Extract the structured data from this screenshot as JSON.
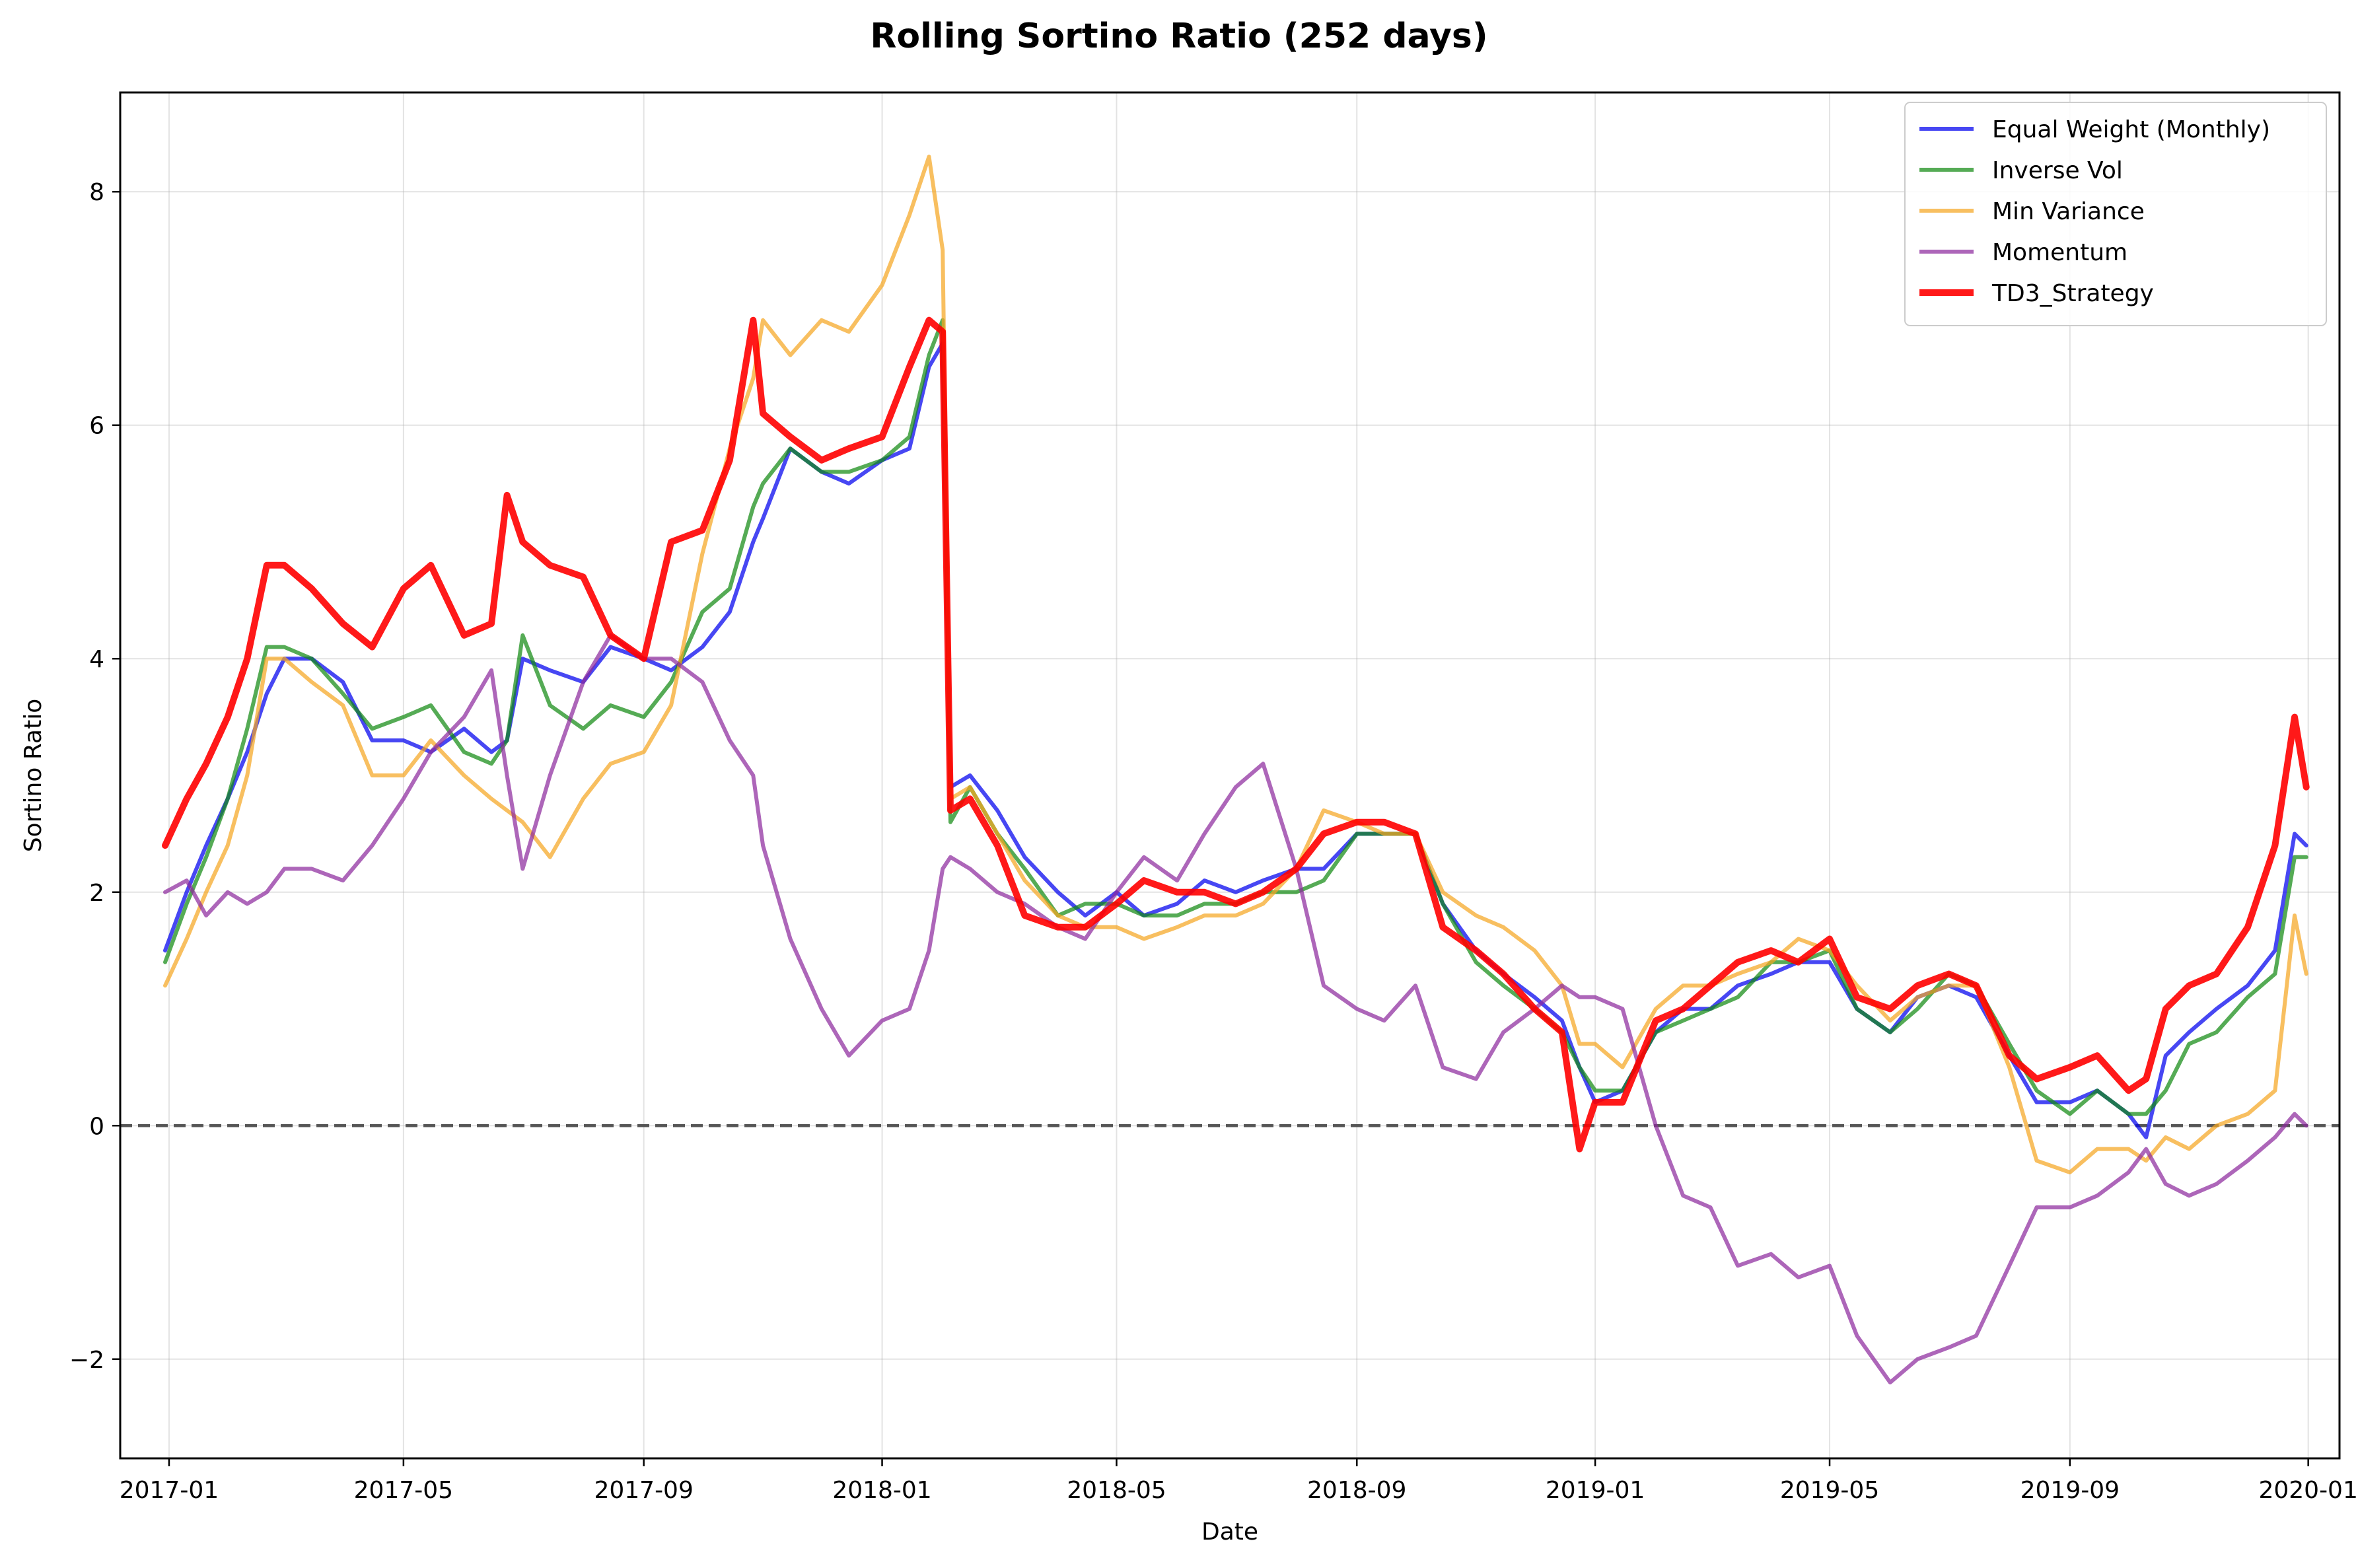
{
  "chart_data": {
    "type": "line",
    "title": "Rolling Sortino Ratio (252 days)",
    "xlabel": "Date",
    "ylabel": "Sortino Ratio",
    "x_ticks": [
      "2017-01",
      "2017-05",
      "2017-09",
      "2018-01",
      "2018-05",
      "2018-09",
      "2019-01",
      "2019-05",
      "2019-09",
      "2020-01"
    ],
    "y_ticks": [
      -2,
      0,
      2,
      4,
      6,
      8
    ],
    "xlim": [
      "2016-12-07",
      "2020-01-17"
    ],
    "ylim": [
      -2.85,
      8.85
    ],
    "grid": true,
    "legend_position": "top-right",
    "reference_line": {
      "y": 0,
      "style": "dashed",
      "color": "#555555"
    },
    "series": [
      {
        "name": "Equal Weight (Monthly)",
        "color": "#0000ee",
        "x": [
          "2016-12-30",
          "2017-01-10",
          "2017-01-20",
          "2017-01-31",
          "2017-02-10",
          "2017-02-20",
          "2017-03-01",
          "2017-03-15",
          "2017-03-31",
          "2017-04-15",
          "2017-05-01",
          "2017-05-15",
          "2017-06-01",
          "2017-06-15",
          "2017-06-23",
          "2017-07-01",
          "2017-07-15",
          "2017-08-01",
          "2017-08-15",
          "2017-09-01",
          "2017-09-15",
          "2017-10-01",
          "2017-10-15",
          "2017-10-27",
          "2017-11-01",
          "2017-11-15",
          "2017-12-01",
          "2017-12-15",
          "2018-01-01",
          "2018-01-15",
          "2018-01-25",
          "2018-02-01",
          "2018-02-05",
          "2018-02-15",
          "2018-03-01",
          "2018-03-15",
          "2018-04-01",
          "2018-04-15",
          "2018-05-01",
          "2018-05-15",
          "2018-06-01",
          "2018-06-15",
          "2018-07-01",
          "2018-07-15",
          "2018-08-01",
          "2018-08-15",
          "2018-09-01",
          "2018-09-15",
          "2018-10-01",
          "2018-10-15",
          "2018-11-01",
          "2018-11-15",
          "2018-12-01",
          "2018-12-15",
          "2018-12-24",
          "2019-01-01",
          "2019-01-15",
          "2019-02-01",
          "2019-02-15",
          "2019-03-01",
          "2019-03-15",
          "2019-04-01",
          "2019-04-15",
          "2019-05-01",
          "2019-05-15",
          "2019-06-01",
          "2019-06-15",
          "2019-07-01",
          "2019-07-15",
          "2019-08-01",
          "2019-08-15",
          "2019-09-01",
          "2019-09-15",
          "2019-10-01",
          "2019-10-10",
          "2019-10-20",
          "2019-11-01",
          "2019-11-15",
          "2019-12-01",
          "2019-12-15",
          "2019-12-25",
          "2019-12-31"
        ],
        "y": [
          1.5,
          2.0,
          2.4,
          2.8,
          3.2,
          3.7,
          4.0,
          4.0,
          3.8,
          3.3,
          3.3,
          3.2,
          3.4,
          3.2,
          3.3,
          4.0,
          3.9,
          3.8,
          4.1,
          4.0,
          3.9,
          4.1,
          4.4,
          5.0,
          5.2,
          5.8,
          5.6,
          5.5,
          5.7,
          5.8,
          6.5,
          6.7,
          2.9,
          3.0,
          2.7,
          2.3,
          2.0,
          1.8,
          2.0,
          1.8,
          1.9,
          2.1,
          2.0,
          2.1,
          2.2,
          2.2,
          2.5,
          2.5,
          2.5,
          1.9,
          1.5,
          1.3,
          1.1,
          0.9,
          0.5,
          0.2,
          0.3,
          0.8,
          1.0,
          1.0,
          1.2,
          1.3,
          1.4,
          1.4,
          1.0,
          0.8,
          1.1,
          1.2,
          1.1,
          0.6,
          0.2,
          0.2,
          0.3,
          0.1,
          -0.1,
          0.6,
          0.8,
          1.0,
          1.2,
          1.5,
          2.5,
          2.4
        ]
      },
      {
        "name": "Inverse Vol",
        "color": "#138a13",
        "x": [
          "2016-12-30",
          "2017-01-10",
          "2017-01-20",
          "2017-01-31",
          "2017-02-10",
          "2017-02-20",
          "2017-03-01",
          "2017-03-15",
          "2017-03-31",
          "2017-04-15",
          "2017-05-01",
          "2017-05-15",
          "2017-06-01",
          "2017-06-15",
          "2017-06-23",
          "2017-07-01",
          "2017-07-15",
          "2017-08-01",
          "2017-08-15",
          "2017-09-01",
          "2017-09-15",
          "2017-10-01",
          "2017-10-15",
          "2017-10-27",
          "2017-11-01",
          "2017-11-15",
          "2017-12-01",
          "2017-12-15",
          "2018-01-01",
          "2018-01-15",
          "2018-01-25",
          "2018-02-01",
          "2018-02-05",
          "2018-02-15",
          "2018-03-01",
          "2018-03-15",
          "2018-04-01",
          "2018-04-15",
          "2018-05-01",
          "2018-05-15",
          "2018-06-01",
          "2018-06-15",
          "2018-07-01",
          "2018-07-15",
          "2018-08-01",
          "2018-08-15",
          "2018-09-01",
          "2018-09-15",
          "2018-10-01",
          "2018-10-15",
          "2018-11-01",
          "2018-11-15",
          "2018-12-01",
          "2018-12-15",
          "2018-12-24",
          "2019-01-01",
          "2019-01-15",
          "2019-02-01",
          "2019-02-15",
          "2019-03-01",
          "2019-03-15",
          "2019-04-01",
          "2019-04-15",
          "2019-05-01",
          "2019-05-15",
          "2019-06-01",
          "2019-06-15",
          "2019-07-01",
          "2019-07-15",
          "2019-08-01",
          "2019-08-15",
          "2019-09-01",
          "2019-09-15",
          "2019-10-01",
          "2019-10-10",
          "2019-10-20",
          "2019-11-01",
          "2019-11-15",
          "2019-12-01",
          "2019-12-15",
          "2019-12-25",
          "2019-12-31"
        ],
        "y": [
          1.4,
          1.9,
          2.3,
          2.8,
          3.4,
          4.1,
          4.1,
          4.0,
          3.7,
          3.4,
          3.5,
          3.6,
          3.2,
          3.1,
          3.3,
          4.2,
          3.6,
          3.4,
          3.6,
          3.5,
          3.8,
          4.4,
          4.6,
          5.3,
          5.5,
          5.8,
          5.6,
          5.6,
          5.7,
          5.9,
          6.6,
          6.9,
          2.6,
          2.9,
          2.5,
          2.2,
          1.8,
          1.9,
          1.9,
          1.8,
          1.8,
          1.9,
          1.9,
          2.0,
          2.0,
          2.1,
          2.5,
          2.5,
          2.5,
          1.9,
          1.4,
          1.2,
          1.0,
          0.8,
          0.5,
          0.3,
          0.3,
          0.8,
          0.9,
          1.0,
          1.1,
          1.4,
          1.4,
          1.5,
          1.0,
          0.8,
          1.0,
          1.3,
          1.2,
          0.7,
          0.3,
          0.1,
          0.3,
          0.1,
          0.1,
          0.3,
          0.7,
          0.8,
          1.1,
          1.3,
          2.3,
          2.3
        ]
      },
      {
        "name": "Min Variance",
        "color": "#f5a623",
        "x": [
          "2016-12-30",
          "2017-01-10",
          "2017-01-20",
          "2017-01-31",
          "2017-02-10",
          "2017-02-20",
          "2017-03-01",
          "2017-03-15",
          "2017-03-31",
          "2017-04-15",
          "2017-05-01",
          "2017-05-15",
          "2017-06-01",
          "2017-06-15",
          "2017-06-23",
          "2017-07-01",
          "2017-07-15",
          "2017-08-01",
          "2017-08-15",
          "2017-09-01",
          "2017-09-15",
          "2017-10-01",
          "2017-10-15",
          "2017-10-27",
          "2017-11-01",
          "2017-11-15",
          "2017-12-01",
          "2017-12-15",
          "2018-01-01",
          "2018-01-15",
          "2018-01-25",
          "2018-02-01",
          "2018-02-05",
          "2018-02-15",
          "2018-03-01",
          "2018-03-15",
          "2018-04-01",
          "2018-04-15",
          "2018-05-01",
          "2018-05-15",
          "2018-06-01",
          "2018-06-15",
          "2018-07-01",
          "2018-07-15",
          "2018-08-01",
          "2018-08-15",
          "2018-09-01",
          "2018-09-15",
          "2018-10-01",
          "2018-10-15",
          "2018-11-01",
          "2018-11-15",
          "2018-12-01",
          "2018-12-15",
          "2018-12-24",
          "2019-01-01",
          "2019-01-15",
          "2019-02-01",
          "2019-02-15",
          "2019-03-01",
          "2019-03-15",
          "2019-04-01",
          "2019-04-15",
          "2019-05-01",
          "2019-05-15",
          "2019-06-01",
          "2019-06-15",
          "2019-07-01",
          "2019-07-15",
          "2019-08-01",
          "2019-08-15",
          "2019-09-01",
          "2019-09-15",
          "2019-10-01",
          "2019-10-10",
          "2019-10-20",
          "2019-11-01",
          "2019-11-15",
          "2019-12-01",
          "2019-12-15",
          "2019-12-25",
          "2019-12-31"
        ],
        "y": [
          1.2,
          1.6,
          2.0,
          2.4,
          3.0,
          4.0,
          4.0,
          3.8,
          3.6,
          3.0,
          3.0,
          3.3,
          3.0,
          2.8,
          2.7,
          2.6,
          2.3,
          2.8,
          3.1,
          3.2,
          3.6,
          4.9,
          5.8,
          6.4,
          6.9,
          6.6,
          6.9,
          6.8,
          7.2,
          7.8,
          8.3,
          7.5,
          2.8,
          2.9,
          2.5,
          2.1,
          1.8,
          1.7,
          1.7,
          1.6,
          1.7,
          1.8,
          1.8,
          1.9,
          2.2,
          2.7,
          2.6,
          2.5,
          2.5,
          2.0,
          1.8,
          1.7,
          1.5,
          1.2,
          0.7,
          0.7,
          0.5,
          1.0,
          1.2,
          1.2,
          1.3,
          1.4,
          1.6,
          1.5,
          1.2,
          0.9,
          1.1,
          1.2,
          1.2,
          0.5,
          -0.3,
          -0.4,
          -0.2,
          -0.2,
          -0.3,
          -0.1,
          -0.2,
          0.0,
          0.1,
          0.3,
          1.8,
          1.3
        ]
      },
      {
        "name": "Momentum",
        "color": "#8e2b9e",
        "x": [
          "2016-12-30",
          "2017-01-10",
          "2017-01-20",
          "2017-01-31",
          "2017-02-10",
          "2017-02-20",
          "2017-03-01",
          "2017-03-15",
          "2017-03-31",
          "2017-04-15",
          "2017-05-01",
          "2017-05-15",
          "2017-06-01",
          "2017-06-15",
          "2017-06-23",
          "2017-07-01",
          "2017-07-15",
          "2017-08-01",
          "2017-08-15",
          "2017-09-01",
          "2017-09-15",
          "2017-10-01",
          "2017-10-15",
          "2017-10-27",
          "2017-11-01",
          "2017-11-15",
          "2017-12-01",
          "2017-12-15",
          "2018-01-01",
          "2018-01-15",
          "2018-01-25",
          "2018-02-01",
          "2018-02-05",
          "2018-02-15",
          "2018-03-01",
          "2018-03-15",
          "2018-04-01",
          "2018-04-15",
          "2018-05-01",
          "2018-05-15",
          "2018-06-01",
          "2018-06-15",
          "2018-07-01",
          "2018-07-15",
          "2018-08-01",
          "2018-08-15",
          "2018-09-01",
          "2018-09-15",
          "2018-10-01",
          "2018-10-15",
          "2018-11-01",
          "2018-11-15",
          "2018-12-01",
          "2018-12-15",
          "2018-12-24",
          "2019-01-01",
          "2019-01-15",
          "2019-02-01",
          "2019-02-15",
          "2019-03-01",
          "2019-03-15",
          "2019-04-01",
          "2019-04-15",
          "2019-05-01",
          "2019-05-15",
          "2019-06-01",
          "2019-06-15",
          "2019-07-01",
          "2019-07-15",
          "2019-08-01",
          "2019-08-15",
          "2019-09-01",
          "2019-09-15",
          "2019-10-01",
          "2019-10-10",
          "2019-10-20",
          "2019-11-01",
          "2019-11-15",
          "2019-12-01",
          "2019-12-15",
          "2019-12-25",
          "2019-12-31"
        ],
        "y": [
          2.0,
          2.1,
          1.8,
          2.0,
          1.9,
          2.0,
          2.2,
          2.2,
          2.1,
          2.4,
          2.8,
          3.2,
          3.5,
          3.9,
          3.0,
          2.2,
          3.0,
          3.8,
          4.2,
          4.0,
          4.0,
          3.8,
          3.3,
          3.0,
          2.4,
          1.6,
          1.0,
          0.6,
          0.9,
          1.0,
          1.5,
          2.2,
          2.3,
          2.2,
          2.0,
          1.9,
          1.7,
          1.6,
          2.0,
          2.3,
          2.1,
          2.5,
          2.9,
          3.1,
          2.2,
          1.2,
          1.0,
          0.9,
          1.2,
          0.5,
          0.4,
          0.8,
          1.0,
          1.2,
          1.1,
          1.1,
          1.0,
          0.0,
          -0.6,
          -0.7,
          -1.2,
          -1.1,
          -1.3,
          -1.2,
          -1.8,
          -2.2,
          -2.0,
          -1.9,
          -1.8,
          -1.2,
          -0.7,
          -0.7,
          -0.6,
          -0.4,
          -0.2,
          -0.5,
          -0.6,
          -0.5,
          -0.3,
          -0.1,
          0.1,
          0.0
        ]
      },
      {
        "name": "TD3_Strategy",
        "color": "#ff0000",
        "x": [
          "2016-12-30",
          "2017-01-10",
          "2017-01-20",
          "2017-01-31",
          "2017-02-10",
          "2017-02-20",
          "2017-03-01",
          "2017-03-15",
          "2017-03-31",
          "2017-04-15",
          "2017-05-01",
          "2017-05-15",
          "2017-06-01",
          "2017-06-15",
          "2017-06-23",
          "2017-07-01",
          "2017-07-15",
          "2017-08-01",
          "2017-08-15",
          "2017-09-01",
          "2017-09-15",
          "2017-10-01",
          "2017-10-15",
          "2017-10-27",
          "2017-11-01",
          "2017-11-15",
          "2017-12-01",
          "2017-12-15",
          "2018-01-01",
          "2018-01-15",
          "2018-01-25",
          "2018-02-01",
          "2018-02-05",
          "2018-02-15",
          "2018-03-01",
          "2018-03-15",
          "2018-04-01",
          "2018-04-15",
          "2018-05-01",
          "2018-05-15",
          "2018-06-01",
          "2018-06-15",
          "2018-07-01",
          "2018-07-15",
          "2018-08-01",
          "2018-08-15",
          "2018-09-01",
          "2018-09-15",
          "2018-10-01",
          "2018-10-15",
          "2018-11-01",
          "2018-11-15",
          "2018-12-01",
          "2018-12-15",
          "2018-12-24",
          "2019-01-01",
          "2019-01-15",
          "2019-02-01",
          "2019-02-15",
          "2019-03-01",
          "2019-03-15",
          "2019-04-01",
          "2019-04-15",
          "2019-05-01",
          "2019-05-15",
          "2019-06-01",
          "2019-06-15",
          "2019-07-01",
          "2019-07-15",
          "2019-08-01",
          "2019-08-15",
          "2019-09-01",
          "2019-09-15",
          "2019-10-01",
          "2019-10-10",
          "2019-10-20",
          "2019-11-01",
          "2019-11-15",
          "2019-12-01",
          "2019-12-15",
          "2019-12-25",
          "2019-12-31"
        ],
        "y": [
          2.4,
          2.8,
          3.1,
          3.5,
          4.0,
          4.8,
          4.8,
          4.6,
          4.3,
          4.1,
          4.6,
          4.8,
          4.2,
          4.3,
          5.4,
          5.0,
          4.8,
          4.7,
          4.2,
          4.0,
          5.0,
          5.1,
          5.7,
          6.9,
          6.1,
          5.9,
          5.7,
          5.8,
          5.9,
          6.5,
          6.9,
          6.8,
          2.7,
          2.8,
          2.4,
          1.8,
          1.7,
          1.7,
          1.9,
          2.1,
          2.0,
          2.0,
          1.9,
          2.0,
          2.2,
          2.5,
          2.6,
          2.6,
          2.5,
          1.7,
          1.5,
          1.3,
          1.0,
          0.8,
          -0.2,
          0.2,
          0.2,
          0.9,
          1.0,
          1.2,
          1.4,
          1.5,
          1.4,
          1.6,
          1.1,
          1.0,
          1.2,
          1.3,
          1.2,
          0.6,
          0.4,
          0.5,
          0.6,
          0.3,
          0.4,
          1.0,
          1.2,
          1.3,
          1.7,
          2.4,
          3.5,
          2.9
        ]
      }
    ]
  }
}
